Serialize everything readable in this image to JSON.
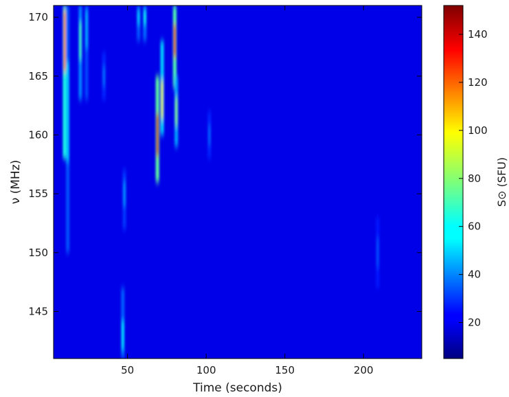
{
  "chart_data": {
    "type": "heatmap",
    "title": "",
    "xlabel": "Time (seconds)",
    "ylabel": "ν (MHz)",
    "xlim": [
      3,
      237
    ],
    "ylim": [
      141,
      171
    ],
    "x_ticks": [
      50,
      100,
      150,
      200
    ],
    "y_ticks": [
      145,
      150,
      155,
      160,
      165,
      170
    ],
    "colorbar": {
      "label": "S⊙ (SFU)",
      "range": [
        5,
        152
      ],
      "ticks": [
        20,
        40,
        60,
        80,
        100,
        120,
        140
      ],
      "colormap": "jet"
    },
    "background_level": 20,
    "features": [
      {
        "t": 10,
        "nu_min": 158,
        "nu_max": 171,
        "peak": 118,
        "peak_nu": 168
      },
      {
        "t": 12,
        "nu_min": 150,
        "nu_max": 171,
        "peak": 55,
        "peak_nu": 162
      },
      {
        "t": 20,
        "nu_min": 163,
        "nu_max": 171,
        "peak": 70,
        "peak_nu": 168
      },
      {
        "t": 24,
        "nu_min": 163,
        "nu_max": 171,
        "peak": 50,
        "peak_nu": 169
      },
      {
        "t": 35,
        "nu_min": 163,
        "nu_max": 167,
        "peak": 40,
        "peak_nu": 165
      },
      {
        "t": 47,
        "nu_min": 141,
        "nu_max": 147,
        "peak": 58,
        "peak_nu": 143
      },
      {
        "t": 48,
        "nu_min": 152,
        "nu_max": 157,
        "peak": 45,
        "peak_nu": 155
      },
      {
        "t": 57,
        "nu_min": 168,
        "nu_max": 171,
        "peak": 55,
        "peak_nu": 170
      },
      {
        "t": 61,
        "nu_min": 168,
        "nu_max": 171,
        "peak": 62,
        "peak_nu": 170
      },
      {
        "t": 69,
        "nu_min": 156,
        "nu_max": 165,
        "peak": 140,
        "peak_nu": 160
      },
      {
        "t": 72,
        "nu_min": 160,
        "nu_max": 168,
        "peak": 95,
        "peak_nu": 163
      },
      {
        "t": 80,
        "nu_min": 164,
        "nu_max": 171,
        "peak": 135,
        "peak_nu": 168
      },
      {
        "t": 81,
        "nu_min": 159,
        "nu_max": 165,
        "peak": 80,
        "peak_nu": 162
      },
      {
        "t": 102,
        "nu_min": 158,
        "nu_max": 162,
        "peak": 38,
        "peak_nu": 160
      },
      {
        "t": 209,
        "nu_min": 147,
        "nu_max": 153,
        "peak": 35,
        "peak_nu": 150
      }
    ]
  }
}
